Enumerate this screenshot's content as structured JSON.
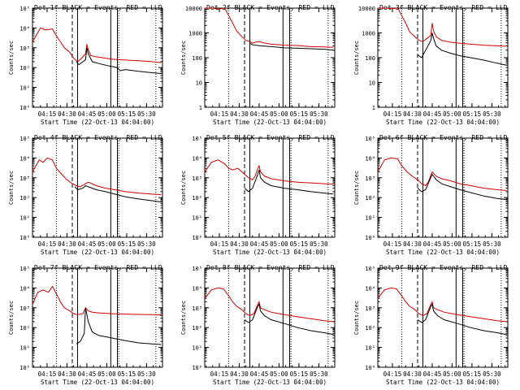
{
  "figure": {
    "x_ticks": [
      "04:15",
      "04:30",
      "04:45",
      "05:00",
      "05:15",
      "05:30"
    ],
    "x_tick_minutes": [
      11,
      26,
      41,
      56,
      71,
      86
    ],
    "x_label": "Start Time (22-Oct-13 04:04:00)",
    "y_label": "Counts/sec",
    "legend": {
      "black": "BLACK = Events",
      "red": "RED = LLD"
    },
    "line_colors": {
      "events": "#000000",
      "lld": "#d00000"
    },
    "x_range_minutes": [
      0,
      98
    ],
    "markers_minutes": {
      "dotted_left": 18,
      "dashed": 30,
      "solid": 34,
      "solid_box": [
        59,
        64
      ],
      "box_dotted": 65,
      "dotted_right": 93
    }
  },
  "chart_data": [
    {
      "type": "line",
      "title": "Det 1f  BLACK = Events, RED = LLD",
      "scale": "log",
      "ylim": [
        1,
        100000
      ],
      "y_tick_labels": [
        "10⁰",
        "10¹",
        "10²",
        "10³",
        "10⁴",
        "10⁵"
      ],
      "series": [
        {
          "name": "LLD",
          "x": [
            0,
            6,
            10,
            15,
            18,
            21,
            24,
            28,
            31,
            34,
            37,
            40,
            41,
            42,
            44,
            48,
            55,
            62,
            70,
            80,
            90,
            97
          ],
          "y": [
            2000,
            10000,
            8000,
            9000,
            4000,
            2000,
            1000,
            600,
            300,
            200,
            300,
            500,
            1500,
            800,
            400,
            350,
            300,
            260,
            240,
            220,
            200,
            180
          ]
        },
        {
          "name": "Events",
          "x": [
            33,
            35,
            40,
            41,
            42,
            45,
            50,
            58,
            64,
            66,
            70,
            80,
            90,
            97
          ],
          "y": [
            200,
            140,
            250,
            1000,
            500,
            200,
            160,
            120,
            100,
            70,
            80,
            65,
            55,
            50
          ]
        }
      ]
    },
    {
      "type": "line",
      "title": "Det 2f  BLACK = Events, RED = LLD",
      "scale": "log",
      "ylim": [
        1,
        10000
      ],
      "y_tick_labels": [
        "1",
        "10",
        "100",
        "1000",
        "10000"
      ],
      "series": [
        {
          "name": "LLD",
          "x": [
            0,
            6,
            10,
            15,
            18,
            21,
            24,
            28,
            31,
            34,
            36,
            38,
            41,
            44,
            50,
            60,
            70,
            80,
            90,
            97
          ],
          "y": [
            10000,
            10000,
            9000,
            10000,
            5000,
            2500,
            1200,
            700,
            500,
            450,
            380,
            420,
            450,
            400,
            350,
            320,
            310,
            280,
            270,
            260
          ]
        },
        {
          "name": "Events",
          "x": [
            34,
            36,
            42,
            50,
            60,
            70,
            80,
            90,
            97
          ],
          "y": [
            380,
            330,
            300,
            280,
            250,
            240,
            230,
            220,
            200
          ]
        }
      ]
    },
    {
      "type": "line",
      "title": "Det 3f  BLACK = Events, RED = LLD",
      "scale": "log",
      "ylim": [
        1,
        10000
      ],
      "y_tick_labels": [
        "1",
        "10",
        "100",
        "1000",
        "10000"
      ],
      "series": [
        {
          "name": "LLD",
          "x": [
            0,
            6,
            10,
            15,
            18,
            21,
            24,
            28,
            31,
            34,
            37,
            40,
            41,
            42,
            44,
            48,
            55,
            62,
            70,
            80,
            90,
            97
          ],
          "y": [
            10000,
            10000,
            9500,
            10000,
            5000,
            2500,
            1100,
            700,
            500,
            450,
            600,
            800,
            2500,
            1200,
            700,
            500,
            420,
            380,
            350,
            320,
            300,
            290
          ]
        },
        {
          "name": "Events",
          "x": [
            30,
            33,
            36,
            40,
            41,
            42,
            44,
            48,
            55,
            62,
            70,
            80,
            90,
            97
          ],
          "y": [
            130,
            100,
            200,
            500,
            1000,
            600,
            300,
            200,
            150,
            120,
            100,
            80,
            60,
            50
          ]
        }
      ]
    },
    {
      "type": "line",
      "title": "Det 4f  BLACK = Events, RED = LLD",
      "scale": "log",
      "ylim": [
        1,
        100000
      ],
      "y_tick_labels": [
        "10⁰",
        "10¹",
        "10²",
        "10³",
        "10⁴",
        "10⁵"
      ],
      "series": [
        {
          "name": "LLD",
          "x": [
            0,
            5,
            8,
            11,
            15,
            18,
            22,
            26,
            30,
            33,
            36,
            40,
            42,
            48,
            55,
            62,
            70,
            80,
            90,
            97
          ],
          "y": [
            2000,
            8000,
            6000,
            10000,
            8000,
            3000,
            1500,
            800,
            500,
            400,
            350,
            500,
            600,
            400,
            300,
            250,
            200,
            170,
            150,
            140
          ]
        },
        {
          "name": "Events",
          "x": [
            32,
            34,
            38,
            40,
            42,
            48,
            55,
            62,
            70,
            80,
            90,
            97
          ],
          "y": [
            350,
            250,
            300,
            400,
            350,
            250,
            200,
            150,
            110,
            85,
            70,
            60
          ]
        }
      ]
    },
    {
      "type": "line",
      "title": "Det 5f  BLACK = Events, RED = LLD",
      "scale": "log",
      "ylim": [
        1,
        100000
      ],
      "y_tick_labels": [
        "10⁰",
        "10¹",
        "10²",
        "10³",
        "10⁴",
        "10⁵"
      ],
      "series": [
        {
          "name": "LLD",
          "x": [
            0,
            5,
            10,
            15,
            18,
            21,
            25,
            30,
            33,
            36,
            38,
            40,
            41,
            42,
            45,
            50,
            60,
            70,
            80,
            90,
            97
          ],
          "y": [
            2000,
            6000,
            8000,
            5000,
            3000,
            2500,
            3000,
            1500,
            1000,
            800,
            1200,
            3000,
            4000,
            2000,
            1200,
            900,
            700,
            600,
            550,
            500,
            480
          ]
        },
        {
          "name": "Events",
          "x": [
            30,
            33,
            36,
            40,
            41,
            42,
            45,
            50,
            60,
            70,
            80,
            90,
            97
          ],
          "y": [
            300,
            200,
            300,
            1500,
            2500,
            1000,
            600,
            400,
            300,
            250,
            200,
            170,
            150
          ]
        }
      ]
    },
    {
      "type": "line",
      "title": "Det 6f  BLACK = Events, RED = LLD",
      "scale": "log",
      "ylim": [
        1,
        100000
      ],
      "y_tick_labels": [
        "10⁰",
        "10¹",
        "10²",
        "10³",
        "10⁴",
        "10⁵"
      ],
      "series": [
        {
          "name": "LLD",
          "x": [
            0,
            5,
            10,
            15,
            18,
            22,
            26,
            30,
            33,
            36,
            38,
            41,
            44,
            48,
            55,
            62,
            70,
            80,
            90,
            97
          ],
          "y": [
            2000,
            8000,
            10000,
            9000,
            4000,
            2000,
            1200,
            800,
            500,
            400,
            600,
            2000,
            1200,
            900,
            700,
            500,
            400,
            300,
            250,
            230
          ]
        },
        {
          "name": "Events",
          "x": [
            30,
            33,
            36,
            41,
            44,
            48,
            55,
            62,
            70,
            80,
            90,
            97
          ],
          "y": [
            300,
            200,
            250,
            1500,
            800,
            500,
            350,
            250,
            180,
            120,
            90,
            80
          ]
        }
      ]
    },
    {
      "type": "line",
      "title": "Det 7f  BLACK = Events, RED = LLD",
      "scale": "log",
      "ylim": [
        1,
        100000
      ],
      "y_tick_labels": [
        "10⁰",
        "10¹",
        "10²",
        "10³",
        "10⁴",
        "10⁵"
      ],
      "series": [
        {
          "name": "LLD",
          "x": [
            0,
            4,
            8,
            12,
            15,
            18,
            21,
            24,
            28,
            31,
            34,
            38,
            40,
            42,
            45,
            50,
            60,
            70,
            80,
            90,
            97
          ],
          "y": [
            1500,
            6000,
            8000,
            6000,
            12000,
            5000,
            2000,
            1000,
            700,
            500,
            450,
            500,
            1000,
            700,
            600,
            550,
            500,
            480,
            460,
            450,
            440
          ]
        },
        {
          "name": "Events",
          "x": [
            33,
            36,
            39,
            40,
            42,
            45,
            50,
            60,
            70,
            80,
            90,
            97
          ],
          "y": [
            15,
            20,
            50,
            1000,
            200,
            60,
            40,
            30,
            22,
            17,
            15,
            14
          ]
        }
      ]
    },
    {
      "type": "line",
      "title": "Det 8f  BLACK = Events, RED = LLD",
      "scale": "log",
      "ylim": [
        1,
        100000
      ],
      "y_tick_labels": [
        "10⁰",
        "10¹",
        "10²",
        "10³",
        "10⁴",
        "10⁵"
      ],
      "series": [
        {
          "name": "LLD",
          "x": [
            0,
            5,
            10,
            14,
            18,
            21,
            24,
            28,
            31,
            34,
            37,
            40,
            41,
            42,
            45,
            50,
            60,
            70,
            80,
            90,
            97
          ],
          "y": [
            3000,
            8000,
            10000,
            9000,
            4000,
            2000,
            1200,
            800,
            500,
            400,
            500,
            1500,
            2000,
            1000,
            800,
            600,
            450,
            350,
            280,
            220,
            200
          ]
        },
        {
          "name": "Events",
          "x": [
            30,
            33,
            36,
            40,
            41,
            42,
            45,
            50,
            60,
            70,
            80,
            90,
            97
          ],
          "y": [
            250,
            180,
            250,
            1200,
            1500,
            700,
            400,
            250,
            160,
            100,
            70,
            55,
            45
          ]
        }
      ]
    },
    {
      "type": "line",
      "title": "Det 9f  BLACK = Events, RED = LLD",
      "scale": "log",
      "ylim": [
        1,
        100000
      ],
      "y_tick_labels": [
        "10⁰",
        "10¹",
        "10²",
        "10³",
        "10⁴",
        "10⁵"
      ],
      "series": [
        {
          "name": "LLD",
          "x": [
            0,
            5,
            10,
            14,
            18,
            21,
            24,
            28,
            31,
            34,
            37,
            40,
            41,
            42,
            45,
            50,
            60,
            70,
            80,
            90,
            97
          ],
          "y": [
            3000,
            8000,
            10000,
            9000,
            4000,
            2000,
            1200,
            800,
            500,
            400,
            500,
            1500,
            2000,
            1000,
            800,
            600,
            450,
            350,
            280,
            220,
            200
          ]
        },
        {
          "name": "Events",
          "x": [
            30,
            33,
            36,
            40,
            41,
            42,
            45,
            50,
            60,
            70,
            80,
            90,
            97
          ],
          "y": [
            250,
            180,
            250,
            1200,
            1500,
            700,
            400,
            250,
            160,
            100,
            70,
            55,
            45
          ]
        }
      ]
    }
  ]
}
